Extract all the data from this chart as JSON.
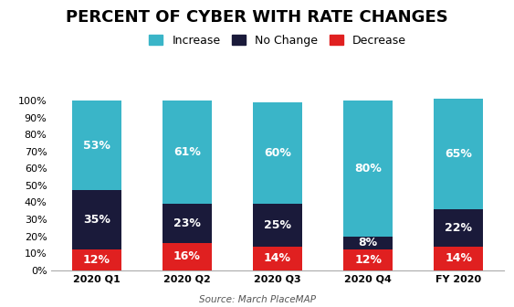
{
  "title": "PERCENT OF CYBER WITH RATE CHANGES",
  "categories": [
    "2020 Q1",
    "2020 Q2",
    "2020 Q3",
    "2020 Q4",
    "FY 2020"
  ],
  "decrease": [
    12,
    16,
    14,
    12,
    14
  ],
  "no_change": [
    35,
    23,
    25,
    8,
    22
  ],
  "increase": [
    53,
    61,
    60,
    80,
    65
  ],
  "decrease_color": "#e02020",
  "no_change_color": "#1a1a3a",
  "increase_color": "#3ab5c8",
  "ylabel_ticks": [
    0,
    10,
    20,
    30,
    40,
    50,
    60,
    70,
    80,
    90,
    100
  ],
  "source_text": "Source: March PlaceMAP",
  "legend_labels": [
    "Increase",
    "No Change",
    "Decrease"
  ],
  "background_color": "#ffffff",
  "title_fontsize": 13,
  "label_fontsize": 9,
  "tick_fontsize": 8,
  "bar_width": 0.55
}
